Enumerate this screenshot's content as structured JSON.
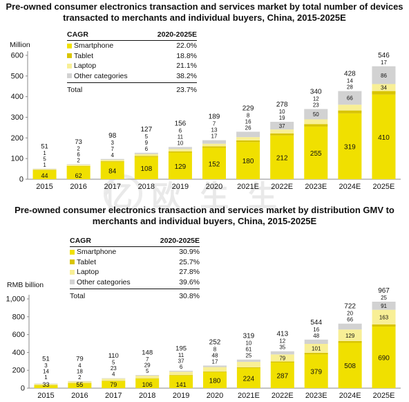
{
  "colors": {
    "smartphone": "#f0e000",
    "tablet": "#d8c400",
    "laptop": "#f8ef96",
    "other": "#d2d2d2",
    "axis": "#888888",
    "text": "#111111"
  },
  "chart_data": [
    {
      "type": "bar",
      "stacked": true,
      "title": "Pre-owned consumer electronics transaction and services market by total number of devices transacted to merchants and individual buyers, China, 2015-2025E",
      "ylabel": "Million",
      "ylim": [
        0,
        600
      ],
      "yticks": [
        0,
        100,
        200,
        300,
        400,
        500,
        600
      ],
      "ytick_labels": [
        "0",
        "100",
        "200",
        "300",
        "400",
        "500",
        "600"
      ],
      "categories": [
        "2015",
        "2016",
        "2017",
        "2018",
        "2019",
        "2020",
        "2021E",
        "2022E",
        "2023E",
        "2024E",
        "2025E"
      ],
      "series": [
        {
          "name": "Smartphone",
          "key": "smartphone",
          "values": [
            44,
            62,
            84,
            108,
            129,
            152,
            180,
            212,
            255,
            319,
            410
          ]
        },
        {
          "name": "Tablet",
          "key": "tablet",
          "values": [
            1,
            2,
            3,
            5,
            6,
            7,
            8,
            10,
            12,
            14,
            17
          ]
        },
        {
          "name": "Laptop",
          "key": "laptop",
          "values": [
            5,
            6,
            7,
            9,
            11,
            13,
            16,
            19,
            23,
            28,
            34
          ]
        },
        {
          "name": "Other categories",
          "key": "other",
          "values": [
            1,
            2,
            4,
            6,
            10,
            17,
            26,
            37,
            50,
            66,
            86
          ]
        }
      ],
      "totals": [
        51,
        73,
        98,
        127,
        156,
        189,
        229,
        278,
        340,
        428,
        546
      ],
      "legend": {
        "header": [
          "CAGR",
          "2020-2025E"
        ],
        "rows": [
          {
            "name": "Smartphone",
            "key": "smartphone",
            "value": "22.0%"
          },
          {
            "name": "Tablet",
            "key": "tablet",
            "value": "18.8%"
          },
          {
            "name": "Laptop",
            "key": "laptop",
            "value": "21.1%"
          },
          {
            "name": "Other categories",
            "key": "other",
            "value": "38.2%"
          }
        ],
        "total": {
          "name": "Total",
          "value": "23.7%"
        }
      }
    },
    {
      "type": "bar",
      "stacked": true,
      "title": "Pre-owned consumer electronics transaction and services market by distribution GMV to merchants and individual buyers, China, 2015-2025E",
      "ylabel": "RMB billion",
      "ylim": [
        0,
        1000
      ],
      "yticks": [
        0,
        200,
        400,
        600,
        800,
        1000
      ],
      "ytick_labels": [
        "0",
        "200",
        "400",
        "600",
        "800",
        "1,000"
      ],
      "categories": [
        "2015",
        "2016",
        "2017",
        "2018",
        "2019",
        "2020",
        "2021E",
        "2022E",
        "2023E",
        "2024E",
        "2025E"
      ],
      "series": [
        {
          "name": "Smartphone",
          "key": "smartphone",
          "values": [
            33,
            55,
            79,
            106,
            141,
            180,
            224,
            287,
            379,
            508,
            690
          ]
        },
        {
          "name": "Tablet",
          "key": "tablet",
          "values": [
            1,
            2,
            4,
            5,
            6,
            8,
            10,
            12,
            16,
            20,
            25
          ]
        },
        {
          "name": "Laptop",
          "key": "laptop",
          "values": [
            14,
            18,
            23,
            29,
            37,
            48,
            61,
            79,
            101,
            129,
            163
          ]
        },
        {
          "name": "Other categories",
          "key": "other",
          "values": [
            3,
            4,
            5,
            7,
            11,
            17,
            25,
            35,
            48,
            66,
            91
          ]
        }
      ],
      "totals": [
        51,
        79,
        110,
        148,
        195,
        252,
        319,
        413,
        544,
        722,
        967
      ],
      "legend": {
        "header": [
          "CAGR",
          "2020-2025E"
        ],
        "rows": [
          {
            "name": "Smartphone",
            "key": "smartphone",
            "value": "30.9%"
          },
          {
            "name": "Tablet",
            "key": "tablet",
            "value": "25.7%"
          },
          {
            "name": "Laptop",
            "key": "laptop",
            "value": "27.8%"
          },
          {
            "name": "Other categories",
            "key": "other",
            "value": "39.6%"
          }
        ],
        "total": {
          "name": "Total",
          "value": "30.8%"
        }
      }
    }
  ]
}
